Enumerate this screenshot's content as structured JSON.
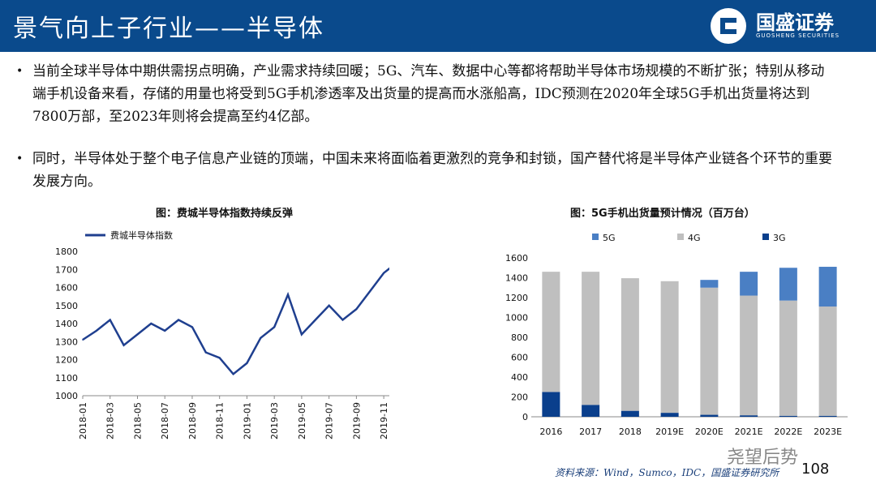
{
  "header": {
    "title": "景气向上子行业——半导体",
    "logo_name": "国盛证券",
    "logo_sub": "GUOSHENG SECURITIES"
  },
  "bullets": [
    "当前全球半导体中期供需拐点明确，产业需求持续回暖；5G、汽车、数据中心等都将帮助半导体市场规模的不断扩张；特别从移动端手机设备来看，存储的用量也将受到5G手机渗透率及出货量的提高而水涨船高，IDC预测在2020年全球5G手机出货量将达到7800万部，至2023年则将会提高至约4亿部。",
    "同时，半导体处于整个电子信息产业链的顶端，中国未来将面临着更激烈的竞争和封锁，国产替代将是半导体产业链各个环节的重要发展方向。"
  ],
  "bullet_symbol": "•",
  "footer": {
    "source": "资料来源：Wind，Sumco，IDC，国盛证券研究所",
    "page": "108",
    "watermark": "尧望后势"
  },
  "chart_data": [
    {
      "type": "line",
      "title": "图：费城半导体指数持续反弹",
      "legend": "top-left",
      "series": [
        {
          "name": "费城半导体指数",
          "color": "#1f3f8f",
          "x": [
            "2018-01",
            "2018-02",
            "2018-03",
            "2018-04",
            "2018-05",
            "2018-06",
            "2018-07",
            "2018-08",
            "2018-09",
            "2018-10",
            "2018-11",
            "2018-12",
            "2019-01",
            "2019-02",
            "2019-03",
            "2019-04",
            "2019-05",
            "2019-06",
            "2019-07",
            "2019-08",
            "2019-09",
            "2019-10",
            "2019-11",
            "2019-12"
          ],
          "values": [
            1310,
            1360,
            1420,
            1280,
            1340,
            1400,
            1360,
            1420,
            1380,
            1240,
            1210,
            1120,
            1180,
            1320,
            1380,
            1560,
            1340,
            1420,
            1500,
            1420,
            1480,
            1580,
            1680,
            1740
          ]
        }
      ],
      "x_ticks": [
        "2018-01",
        "2018-03",
        "2018-05",
        "2018-07",
        "2018-09",
        "2018-11",
        "2019-01",
        "2019-03",
        "2019-05",
        "2019-07",
        "2019-09",
        "2019-11"
      ],
      "ylim": [
        1000,
        1800
      ],
      "y_ticks": [
        1000,
        1100,
        1200,
        1300,
        1400,
        1500,
        1600,
        1700,
        1800
      ]
    },
    {
      "type": "bar",
      "title": "图：5G手机出货量预计情况（百万台）",
      "legend": "top",
      "stacked": true,
      "categories": [
        "2016",
        "2017",
        "2018",
        "2019E",
        "2020E",
        "2021E",
        "2022E",
        "2023E"
      ],
      "series": [
        {
          "name": "3G",
          "color": "#0a3f8c",
          "values": [
            250,
            120,
            60,
            40,
            20,
            15,
            10,
            10
          ]
        },
        {
          "name": "4G",
          "color": "#bfbfbf",
          "values": [
            1210,
            1340,
            1335,
            1325,
            1280,
            1205,
            1160,
            1100
          ]
        },
        {
          "name": "5G",
          "color": "#4a7fc4",
          "values": [
            0,
            0,
            0,
            0,
            78,
            240,
            330,
            400
          ]
        }
      ],
      "legend_order": [
        "5G",
        "4G",
        "3G"
      ],
      "ylim": [
        0,
        1600
      ],
      "y_ticks": [
        0,
        200,
        400,
        600,
        800,
        1000,
        1200,
        1400,
        1600
      ]
    }
  ]
}
